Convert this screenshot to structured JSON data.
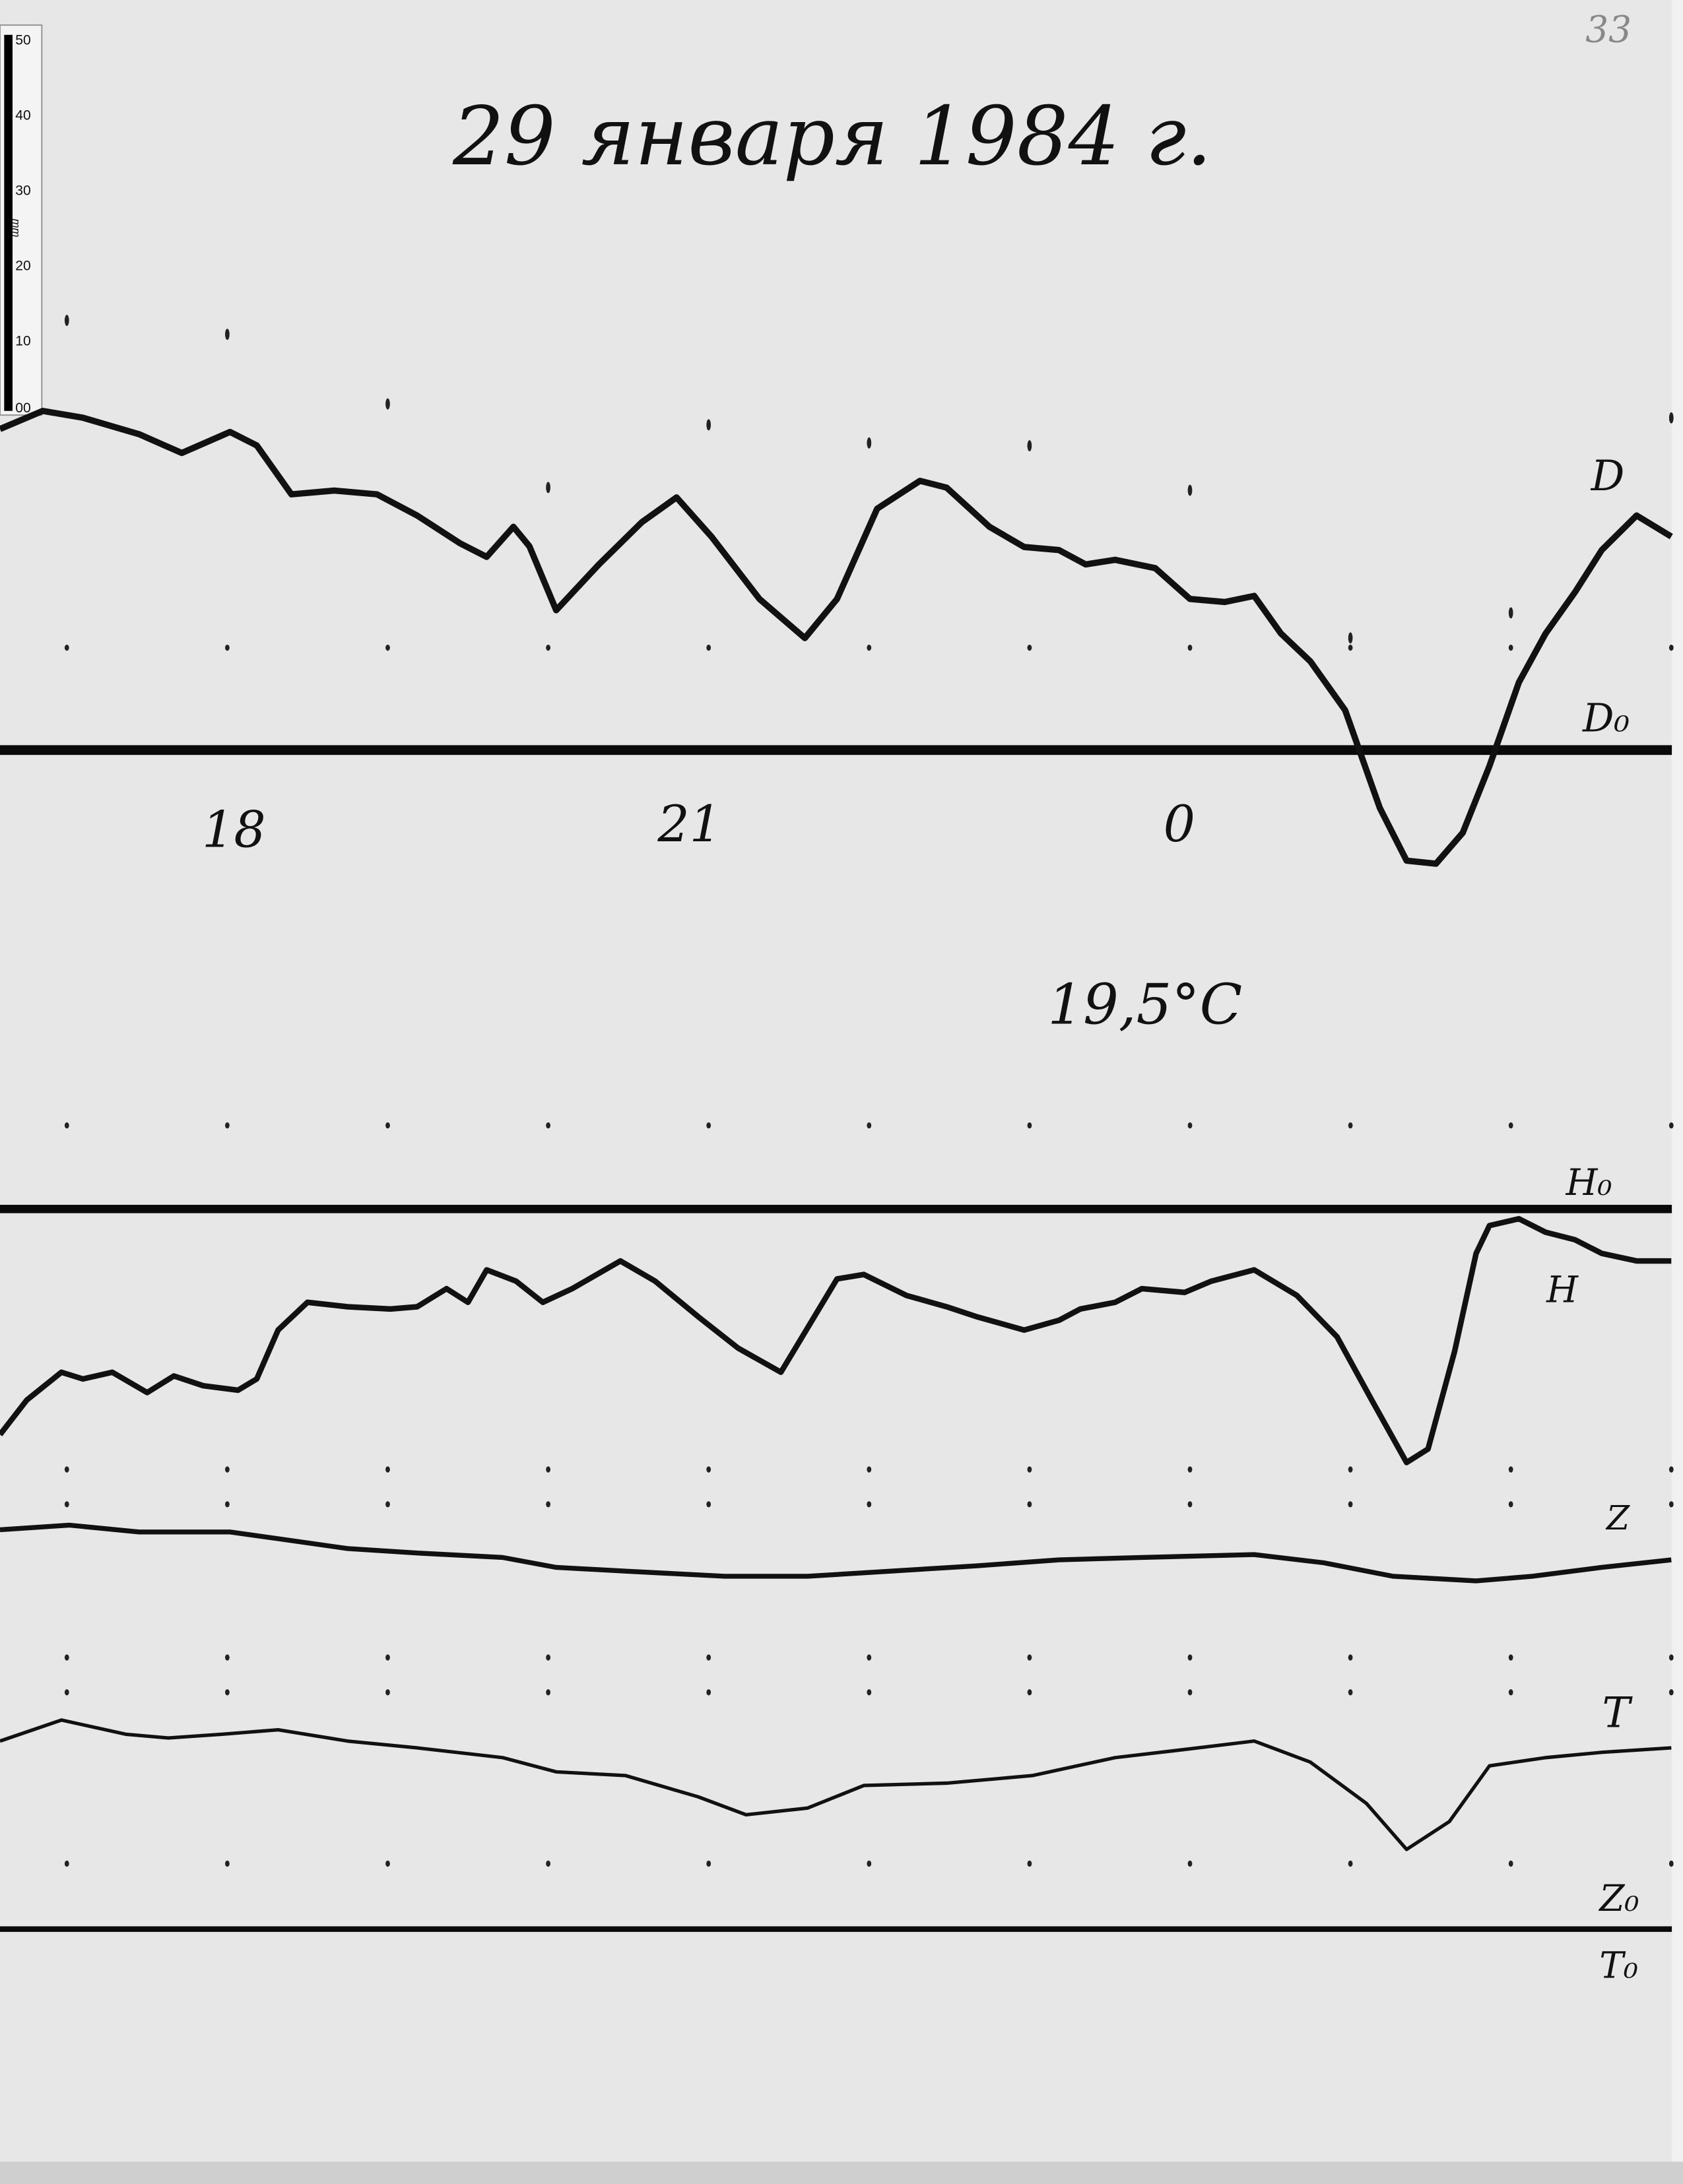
{
  "page_number": "33",
  "title": "29 января 1984 г.",
  "temperature": "19,5°C",
  "ruler": {
    "unit": "mm",
    "ticks": [
      "50",
      "40",
      "30",
      "20",
      "10",
      "00"
    ]
  },
  "chart_data": {
    "type": "line",
    "title": "29 января 1984 г.",
    "xlabel": "",
    "ylabel": "",
    "x_tick_labels": [
      "18",
      "21",
      "0"
    ],
    "x_range": [
      "16:35",
      "03:00"
    ],
    "y_unit_from_ruler": "mm",
    "grid": false,
    "hour_marks": [
      "17:00",
      "18:00",
      "19:00",
      "20:00",
      "21:00",
      "22:00",
      "23:00",
      "00:00",
      "01:00",
      "02:00",
      "03:00"
    ],
    "baselines": [
      {
        "name": "D₀"
      },
      {
        "name": "H₀"
      },
      {
        "name": "Z₀"
      },
      {
        "name": "T₀"
      }
    ],
    "series": [
      {
        "name": "D",
        "baseline": "D₀",
        "x": [
          "16:35",
          "16:51",
          "17:06",
          "17:27",
          "17:43",
          "18:01",
          "18:11",
          "18:24",
          "18:40",
          "18:56",
          "19:11",
          "19:27",
          "19:37",
          "19:47",
          "19:53",
          "20:03",
          "20:19",
          "20:35",
          "20:48",
          "21:01",
          "21:19",
          "21:36",
          "21:48",
          "22:03",
          "22:19",
          "22:29",
          "22:45",
          "22:58",
          "23:11",
          "23:21",
          "23:32",
          "23:47",
          "00:00",
          "00:13",
          "00:24",
          "00:34",
          "00:45",
          "00:58",
          "01:11",
          "01:21",
          "01:32",
          "01:42",
          "01:52",
          "02:03",
          "02:13",
          "02:24",
          "02:34",
          "02:47",
          "03:00"
        ],
        "y": [
          42.6,
          45.0,
          44.1,
          41.9,
          39.4,
          42.2,
          40.4,
          33.9,
          34.4,
          33.9,
          31.1,
          27.4,
          25.6,
          29.6,
          27.0,
          18.5,
          24.6,
          30.2,
          33.5,
          28.3,
          20.0,
          14.8,
          20.0,
          32.0,
          35.7,
          34.8,
          29.6,
          26.9,
          26.5,
          24.6,
          25.2,
          24.1,
          20.0,
          19.6,
          20.4,
          15.4,
          11.7,
          5.2,
          -7.8,
          -14.8,
          -15.2,
          -11.1,
          -2.2,
          8.9,
          15.4,
          20.9,
          26.5,
          31.1,
          28.3
        ]
      },
      {
        "name": "H",
        "baseline": "H₀",
        "x": [
          "16:35",
          "16:45",
          "16:58",
          "17:06",
          "17:17",
          "17:30",
          "17:40",
          "17:51",
          "18:04",
          "18:11",
          "18:19",
          "18:30",
          "18:45",
          "19:01",
          "19:11",
          "19:22",
          "19:30",
          "19:37",
          "19:48",
          "19:58",
          "20:09",
          "20:27",
          "20:40",
          "20:56",
          "21:11",
          "21:27",
          "21:35",
          "21:48",
          "21:58",
          "22:14",
          "22:29",
          "22:40",
          "22:58",
          "23:11",
          "23:19",
          "23:32",
          "23:42",
          "23:58",
          "00:08",
          "00:24",
          "00:40",
          "00:55",
          "01:08",
          "01:21",
          "01:29",
          "01:39",
          "01:47",
          "01:52",
          "02:03",
          "02:13",
          "02:24",
          "02:34",
          "02:47",
          "03:00"
        ],
        "y": [
          -30.0,
          -25.4,
          -21.7,
          -22.6,
          -21.7,
          -24.4,
          -22.2,
          -23.5,
          -24.1,
          -22.6,
          -16.1,
          -12.4,
          -13.0,
          -13.3,
          -13.0,
          -10.6,
          -12.4,
          -8.1,
          -9.6,
          -12.4,
          -10.6,
          -6.9,
          -9.6,
          -14.3,
          -18.5,
          -21.7,
          -17.0,
          -9.3,
          -8.7,
          -11.5,
          -13.0,
          -14.3,
          -16.1,
          -14.8,
          -13.3,
          -12.4,
          -10.6,
          -11.1,
          -9.6,
          -8.1,
          -11.5,
          -17.0,
          -25.4,
          -33.7,
          -31.9,
          -18.9,
          -5.9,
          -2.2,
          -1.3,
          -3.1,
          -4.1,
          -5.9,
          -6.9,
          -6.9
        ]
      },
      {
        "name": "Z",
        "baseline": "Z₀",
        "x": [
          "16:35",
          "17:01",
          "17:27",
          "18:01",
          "18:19",
          "18:45",
          "19:11",
          "19:43",
          "20:03",
          "20:29",
          "21:06",
          "21:37",
          "22:08",
          "22:40",
          "23:11",
          "23:42",
          "00:24",
          "00:50",
          "01:16",
          "01:47",
          "02:08",
          "02:34",
          "03:00"
        ],
        "y": [
          53.1,
          53.7,
          52.8,
          52.8,
          51.9,
          50.6,
          50.0,
          49.4,
          48.1,
          47.6,
          46.9,
          46.9,
          47.6,
          48.3,
          49.1,
          49.4,
          49.8,
          48.7,
          46.9,
          46.3,
          46.9,
          48.1,
          49.1
        ]
      },
      {
        "name": "T",
        "baseline": "T₀",
        "x": [
          "16:35",
          "16:58",
          "17:22",
          "17:38",
          "17:58",
          "18:19",
          "18:45",
          "19:11",
          "19:43",
          "20:03",
          "20:29",
          "20:56",
          "21:14",
          "21:37",
          "21:58",
          "22:29",
          "23:01",
          "23:32",
          "00:03",
          "00:24",
          "00:45",
          "01:06",
          "01:21",
          "01:37",
          "01:52",
          "02:13",
          "02:34",
          "03:00"
        ],
        "y": [
          25.0,
          27.8,
          25.9,
          25.4,
          25.9,
          26.5,
          25.0,
          24.1,
          22.8,
          20.9,
          20.4,
          17.6,
          15.2,
          16.1,
          19.1,
          19.4,
          20.4,
          22.8,
          24.1,
          25.0,
          22.2,
          16.7,
          10.6,
          14.3,
          21.7,
          22.8,
          23.5,
          24.1
        ]
      }
    ]
  },
  "colors": {
    "paper": "#e6e6e6",
    "ink": "#111111"
  }
}
